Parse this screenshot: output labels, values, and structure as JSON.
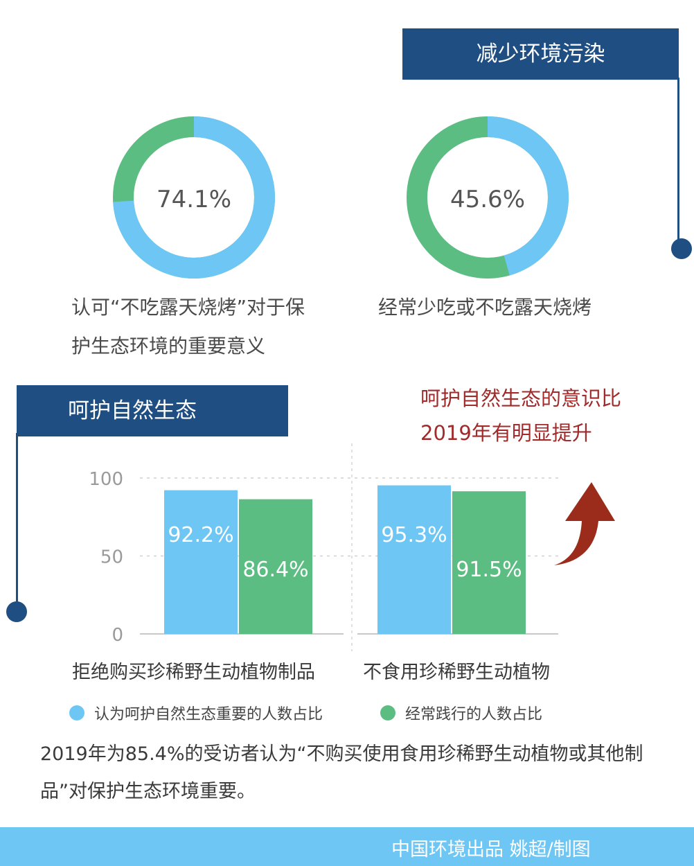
{
  "colors": {
    "blue": "#6ec6f5",
    "green": "#5cbd82",
    "navy": "#1f4e82",
    "red_text": "#a12a2a",
    "arrow": "#9b2c1c"
  },
  "section_reduce": {
    "title": "减少环境污染"
  },
  "section_protect": {
    "title": "呵护自然生态"
  },
  "donuts": [
    {
      "value": 74.1,
      "value_text": "74.1%",
      "label_lines": [
        "认可“不吃露天烧烤”对于保",
        "护生态环境的重要意义"
      ]
    },
    {
      "value": 45.6,
      "value_text": "45.6%",
      "label_lines": [
        "经常少吃或不吃露天烧烤"
      ]
    }
  ],
  "note": {
    "line1": "呵护自然生态的意识比",
    "line2": "2019年有明显提升"
  },
  "chart_data": {
    "type": "bar",
    "categories": [
      "拒绝购买珍稀野生动植物制品",
      "不食用珍稀野生动植物"
    ],
    "series": [
      {
        "name": "认为呵护自然生态重要的人数占比",
        "values": [
          92.2,
          95.3
        ],
        "labels": [
          "92.2%",
          "95.3%"
        ]
      },
      {
        "name": "经常践行的人数占比",
        "values": [
          86.4,
          91.5
        ],
        "labels": [
          "86.4%",
          "91.5%"
        ]
      }
    ],
    "ylim": [
      0,
      100
    ],
    "yticks": [
      "0",
      "50",
      "100"
    ],
    "grid": true,
    "legend": "bottom"
  },
  "bottom_text": "2019年为85.4%的受访者认为“不购买使用食用珍稀野生动植物或其他制品”对保护生态环境重要。",
  "footer": {
    "credit": "中国环境出品 姚超/制图"
  }
}
